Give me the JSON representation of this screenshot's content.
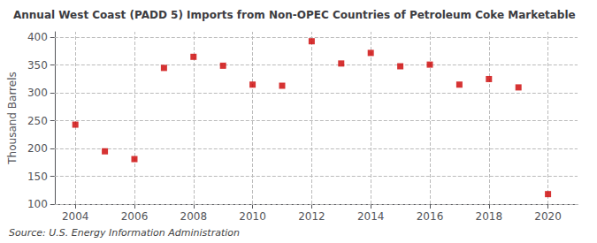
{
  "chart_data": {
    "type": "scatter",
    "title": "Annual West Coast (PADD 5) Imports from Non-OPEC Countries of Petroleum Coke Marketable",
    "ylabel": "Thousand Barrels",
    "source": "Source: U.S. Energy Information Administration",
    "x": [
      2004,
      2005,
      2006,
      2007,
      2008,
      2009,
      2010,
      2011,
      2012,
      2013,
      2014,
      2015,
      2016,
      2017,
      2018,
      2019,
      2020
    ],
    "values": [
      243,
      195,
      181,
      345,
      365,
      349,
      315,
      313,
      393,
      353,
      372,
      348,
      351,
      315,
      325,
      310,
      118
    ],
    "color": "#cc0000",
    "marker": "square",
    "xlim": [
      2003.3,
      2021.0
    ],
    "xticks": [
      2004,
      2006,
      2008,
      2010,
      2012,
      2014,
      2016,
      2018,
      2020
    ],
    "ylim": [
      100,
      410
    ],
    "yticks": [
      100,
      150,
      200,
      250,
      300,
      350,
      400
    ],
    "grid": true
  }
}
